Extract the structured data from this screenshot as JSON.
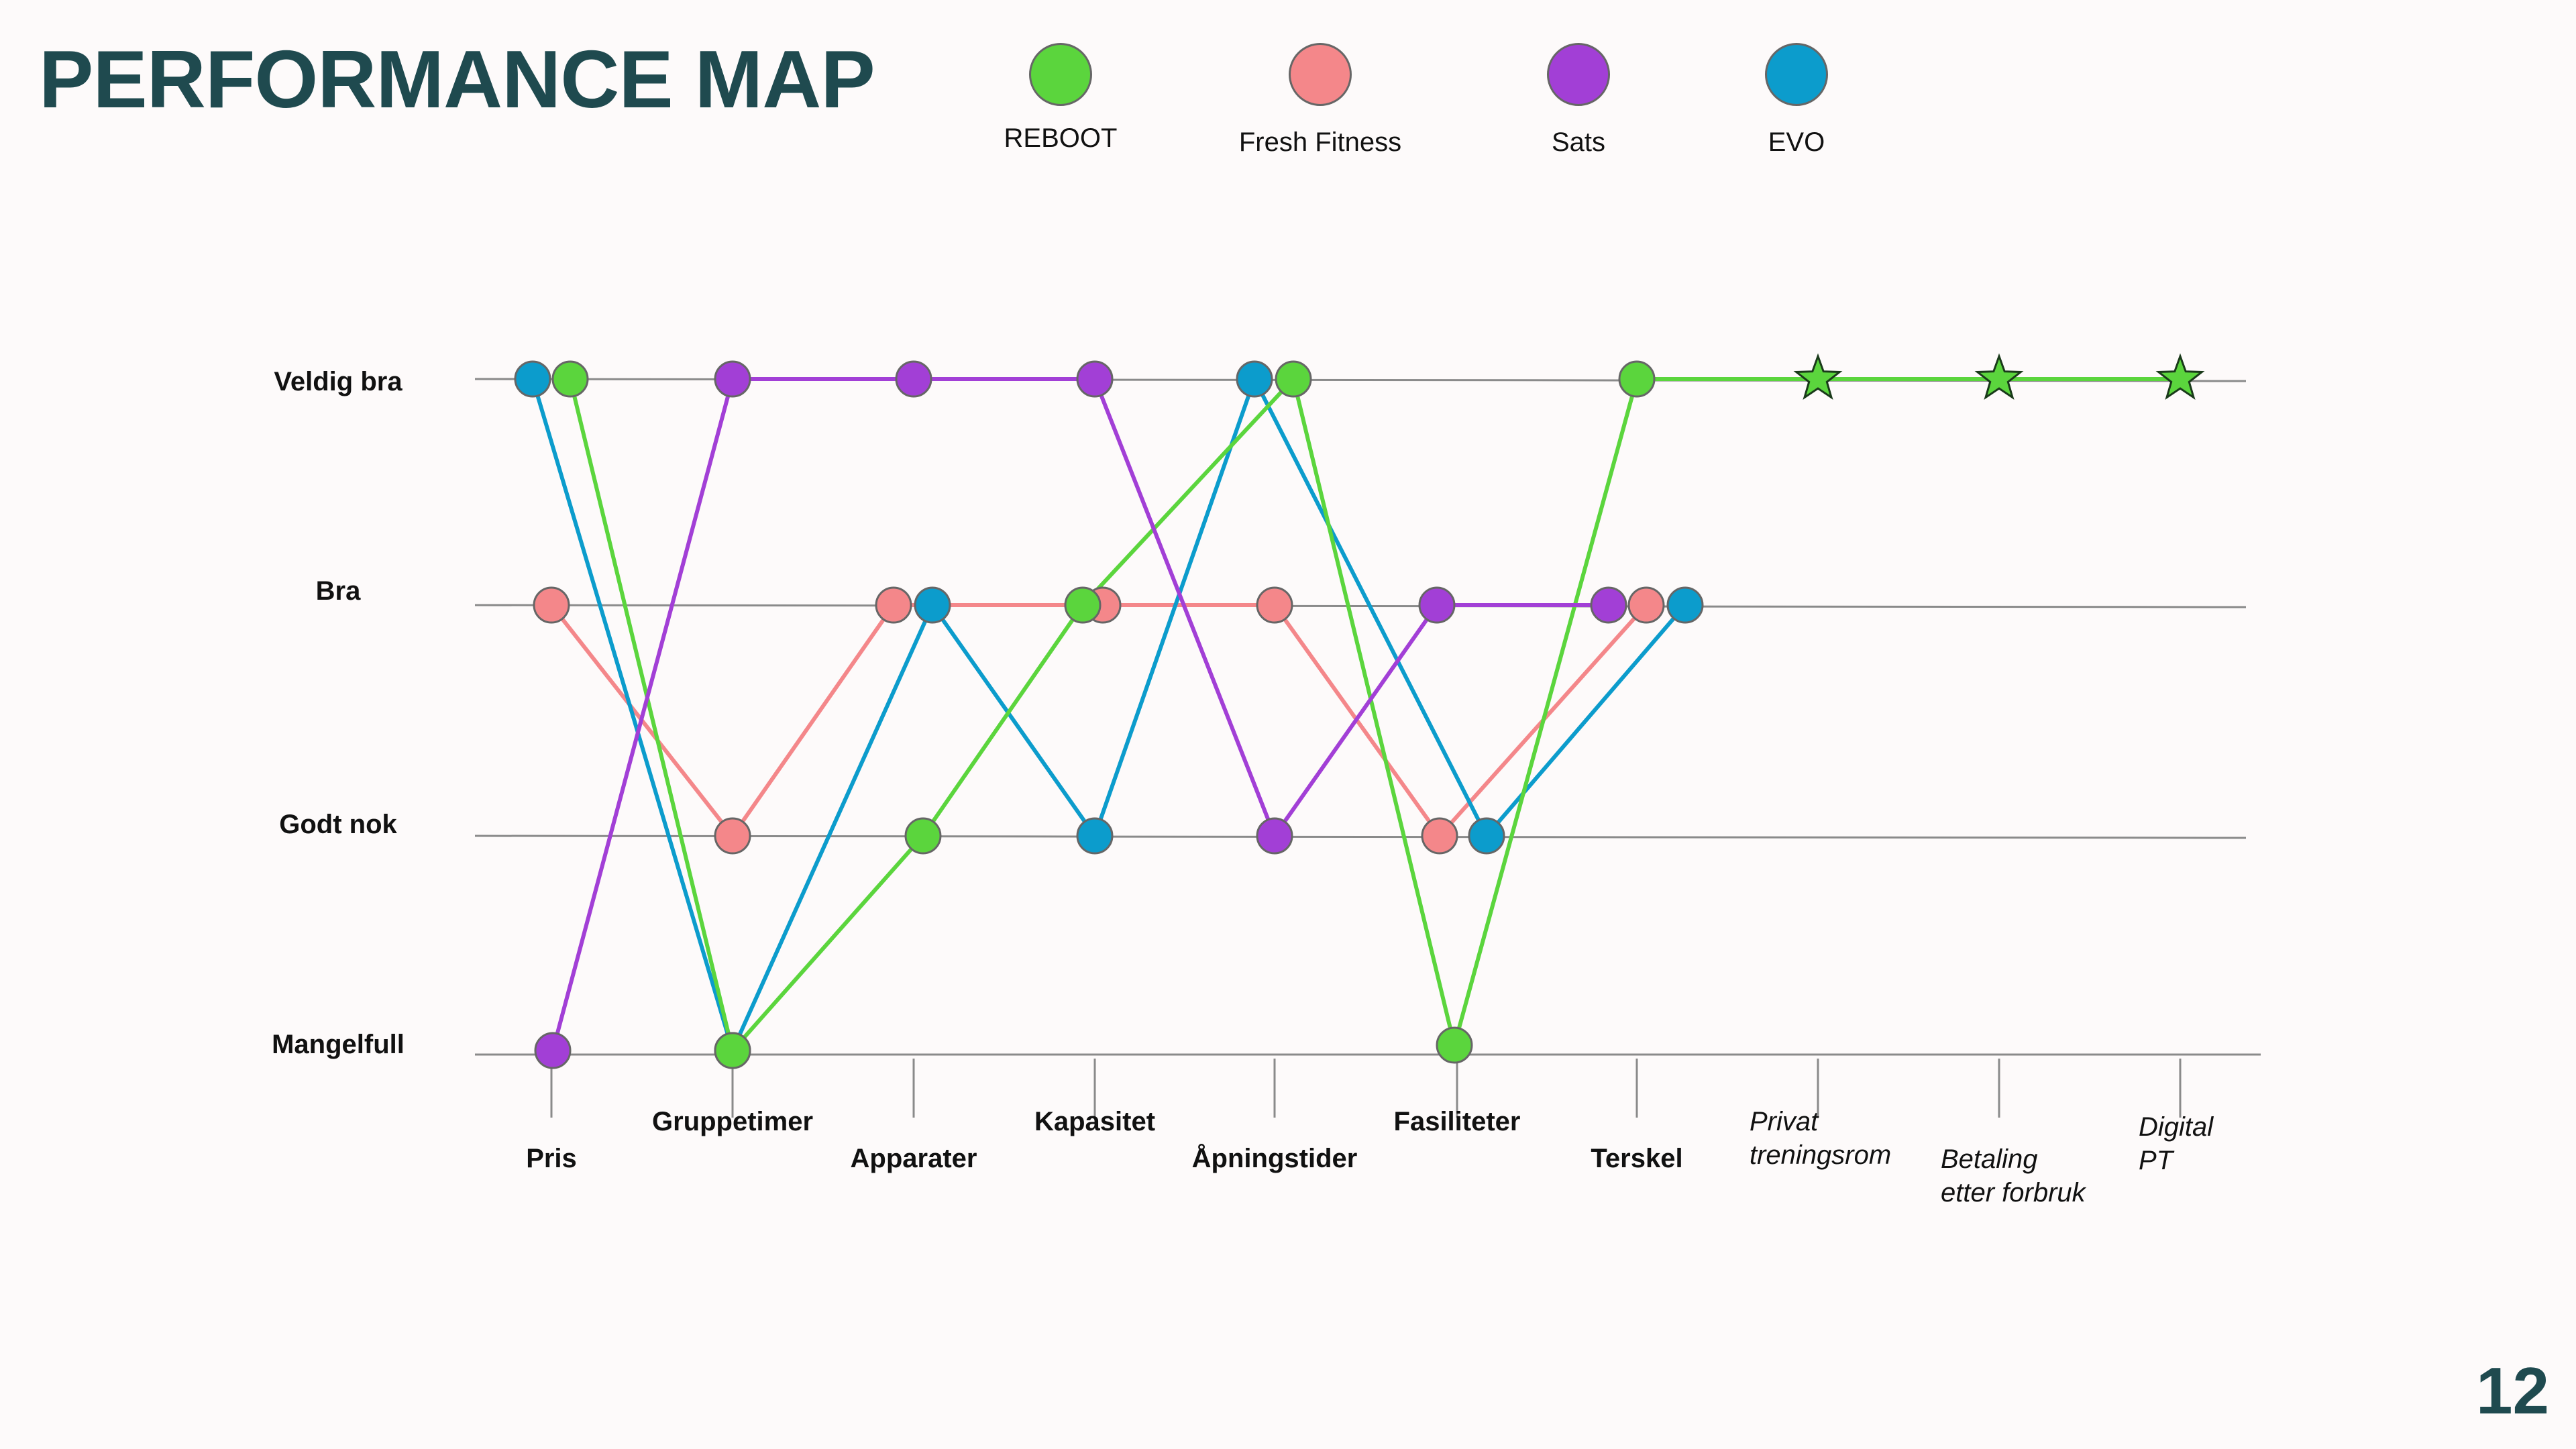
{
  "title": "PERFORMANCE MAP",
  "page_number": "12",
  "legend": [
    {
      "name": "REBOOT",
      "color": "#5bd53d"
    },
    {
      "name": "Fresh Fitness",
      "color": "#f4878a"
    },
    {
      "name": "Sats",
      "color": "#a23fd6"
    },
    {
      "name": "EVO",
      "color": "#0c9ccc"
    }
  ],
  "chart_data": {
    "type": "line",
    "title": "",
    "xlabel": "",
    "ylabel": "",
    "grid": true,
    "legend_position": "top",
    "y_levels": [
      "Mangelfull",
      "Godt nok",
      "Bra",
      "Veldig bra"
    ],
    "categories": [
      "Pris",
      "Gruppetimer",
      "Apparater",
      "Kapasitet",
      "Åpningstider",
      "Fasiliteter",
      "Terskel",
      "Privat treningsrom",
      "Betaling etter forbruk",
      "Digital PT"
    ],
    "category_styles": [
      "bold",
      "bold",
      "bold",
      "bold",
      "bold",
      "bold",
      "bold",
      "italic",
      "italic",
      "italic"
    ],
    "series": [
      {
        "name": "REBOOT",
        "color": "#5bd53d",
        "values": [
          "Veldig bra",
          "Mangelfull",
          "Godt nok",
          "Bra",
          "Veldig bra",
          "Mangelfull",
          "Veldig bra",
          "Veldig bra",
          "Veldig bra",
          "Veldig bra"
        ],
        "markers": [
          "circle",
          "circle",
          "circle",
          "circle",
          "circle",
          "circle",
          "circle",
          "star",
          "star",
          "star"
        ]
      },
      {
        "name": "Fresh Fitness",
        "color": "#f4878a",
        "values": [
          "Bra",
          "Godt nok",
          "Bra",
          "Bra",
          "Bra",
          "Godt nok",
          "Bra",
          null,
          null,
          null
        ],
        "markers": [
          "circle",
          "circle",
          "circle",
          "circle",
          "circle",
          "circle",
          "circle",
          null,
          null,
          null
        ]
      },
      {
        "name": "Sats",
        "color": "#a23fd6",
        "values": [
          "Mangelfull",
          "Veldig bra",
          "Veldig bra",
          "Veldig bra",
          "Godt nok",
          "Bra",
          "Bra",
          null,
          null,
          null
        ],
        "markers": [
          "circle",
          "circle",
          "circle",
          "circle",
          "circle",
          "circle",
          "circle",
          null,
          null,
          null
        ]
      },
      {
        "name": "EVO",
        "color": "#0c9ccc",
        "values": [
          "Veldig bra",
          "Mangelfull",
          "Bra",
          "Godt nok",
          "Veldig bra",
          "Godt nok",
          "Bra",
          null,
          null,
          null
        ],
        "markers": [
          "circle",
          "circle",
          "circle",
          "circle",
          "circle",
          "circle",
          "circle",
          null,
          null,
          null
        ]
      }
    ]
  }
}
